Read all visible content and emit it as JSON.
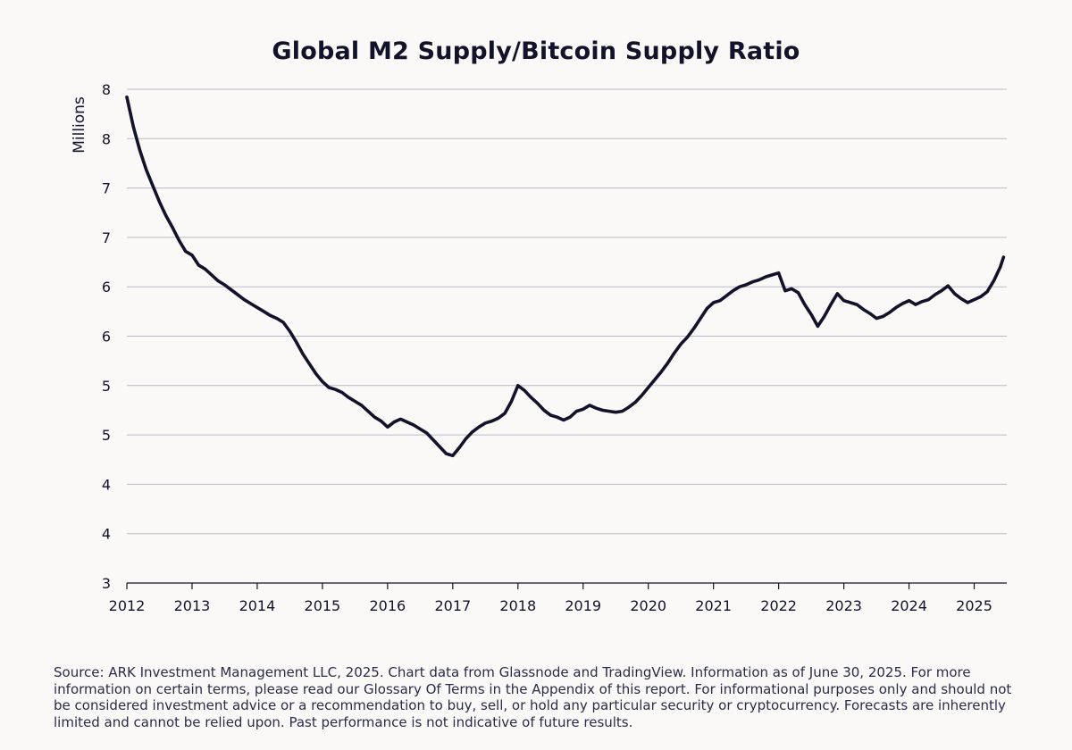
{
  "chart_data": {
    "type": "line",
    "title": "Global M2 Supply/Bitcoin Supply Ratio",
    "xlabel": "",
    "ylabel": "Millions",
    "x_ticks": [
      "2012",
      "2013",
      "2014",
      "2015",
      "2016",
      "2017",
      "2018",
      "2019",
      "2020",
      "2021",
      "2022",
      "2023",
      "2024",
      "2025"
    ],
    "y_tick_labels": [
      "3",
      "4",
      "4",
      "5",
      "5",
      "6",
      "6",
      "7",
      "7",
      "8",
      "8"
    ],
    "ylim": [
      3,
      8
    ],
    "xlim": [
      2012.0,
      2025.5
    ],
    "grid": "horizontal",
    "line_color": "#12132a",
    "series": [
      {
        "name": "Global M2 Supply/Bitcoin Supply Ratio",
        "x": [
          2012.0,
          2012.1,
          2012.2,
          2012.3,
          2012.4,
          2012.5,
          2012.6,
          2012.7,
          2012.8,
          2012.9,
          2013.0,
          2013.1,
          2013.2,
          2013.3,
          2013.4,
          2013.5,
          2013.6,
          2013.7,
          2013.8,
          2013.9,
          2014.0,
          2014.1,
          2014.2,
          2014.3,
          2014.4,
          2014.5,
          2014.6,
          2014.7,
          2014.8,
          2014.9,
          2015.0,
          2015.1,
          2015.2,
          2015.3,
          2015.4,
          2015.5,
          2015.6,
          2015.7,
          2015.8,
          2015.9,
          2016.0,
          2016.1,
          2016.2,
          2016.3,
          2016.4,
          2016.5,
          2016.6,
          2016.7,
          2016.8,
          2016.9,
          2017.0,
          2017.1,
          2017.2,
          2017.3,
          2017.4,
          2017.5,
          2017.6,
          2017.7,
          2017.8,
          2017.9,
          2018.0,
          2018.1,
          2018.2,
          2018.3,
          2018.4,
          2018.5,
          2018.6,
          2018.7,
          2018.8,
          2018.9,
          2019.0,
          2019.1,
          2019.2,
          2019.3,
          2019.4,
          2019.5,
          2019.6,
          2019.7,
          2019.8,
          2019.9,
          2020.0,
          2020.1,
          2020.2,
          2020.3,
          2020.4,
          2020.5,
          2020.6,
          2020.7,
          2020.8,
          2020.9,
          2021.0,
          2021.1,
          2021.2,
          2021.3,
          2021.4,
          2021.5,
          2021.6,
          2021.7,
          2021.8,
          2021.9,
          2022.0,
          2022.1,
          2022.2,
          2022.3,
          2022.4,
          2022.5,
          2022.6,
          2022.7,
          2022.8,
          2022.9,
          2023.0,
          2023.1,
          2023.2,
          2023.3,
          2023.4,
          2023.5,
          2023.6,
          2023.7,
          2023.8,
          2023.9,
          2024.0,
          2024.1,
          2024.2,
          2024.3,
          2024.4,
          2024.5,
          2024.6,
          2024.7,
          2024.8,
          2024.9,
          2025.0,
          2025.1,
          2025.2,
          2025.3,
          2025.4,
          2025.45
        ],
        "values": [
          7.92,
          7.62,
          7.38,
          7.18,
          7.02,
          6.86,
          6.72,
          6.6,
          6.47,
          6.36,
          6.32,
          6.22,
          6.18,
          6.12,
          6.06,
          6.02,
          5.97,
          5.92,
          5.87,
          5.83,
          5.79,
          5.75,
          5.71,
          5.68,
          5.64,
          5.55,
          5.44,
          5.32,
          5.22,
          5.12,
          5.04,
          4.98,
          4.96,
          4.93,
          4.88,
          4.84,
          4.8,
          4.74,
          4.68,
          4.64,
          4.58,
          4.63,
          4.66,
          4.63,
          4.6,
          4.56,
          4.52,
          4.45,
          4.38,
          4.31,
          4.29,
          4.37,
          4.46,
          4.53,
          4.58,
          4.62,
          4.64,
          4.67,
          4.72,
          4.84,
          5.0,
          4.95,
          4.88,
          4.82,
          4.75,
          4.7,
          4.68,
          4.65,
          4.68,
          4.74,
          4.76,
          4.8,
          4.77,
          4.75,
          4.74,
          4.73,
          4.74,
          4.78,
          4.83,
          4.9,
          4.98,
          5.06,
          5.14,
          5.23,
          5.33,
          5.42,
          5.49,
          5.58,
          5.68,
          5.78,
          5.84,
          5.86,
          5.91,
          5.96,
          6.0,
          6.02,
          6.05,
          6.07,
          6.1,
          6.12,
          6.14,
          5.96,
          5.98,
          5.94,
          5.82,
          5.72,
          5.6,
          5.7,
          5.82,
          5.93,
          5.86,
          5.84,
          5.82,
          5.77,
          5.73,
          5.68,
          5.7,
          5.74,
          5.79,
          5.83,
          5.86,
          5.82,
          5.85,
          5.87,
          5.92,
          5.96,
          6.01,
          5.93,
          5.88,
          5.84,
          5.87,
          5.9,
          5.95,
          6.06,
          6.2,
          6.3
        ]
      }
    ]
  },
  "footnote": "Source: ARK Investment Management LLC, 2025. Chart data from Glassnode and TradingView. Information as of June 30, 2025. For more information on certain terms, please read our Glossary Of Terms in the Appendix of this report. For informational purposes only and should not be considered investment advice or a recommendation to buy, sell, or hold any particular security or cryptocurrency. Forecasts are inherently limited and cannot be relied upon. Past performance is not indicative of future results."
}
